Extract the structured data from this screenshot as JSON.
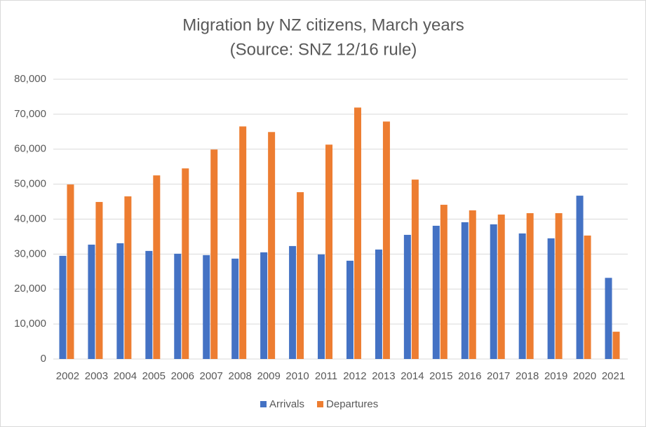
{
  "chart_data": {
    "type": "bar",
    "title": "Migration by NZ citizens, March years",
    "subtitle": "(Source: SNZ 12/16 rule)",
    "categories": [
      "2002",
      "2003",
      "2004",
      "2005",
      "2006",
      "2007",
      "2008",
      "2009",
      "2010",
      "2011",
      "2012",
      "2013",
      "2014",
      "2015",
      "2016",
      "2017",
      "2018",
      "2019",
      "2020",
      "2021"
    ],
    "series": [
      {
        "name": "Arrivals",
        "color": "#4472c4",
        "values": [
          29500,
          32700,
          33100,
          30900,
          30100,
          29700,
          28700,
          30500,
          32300,
          29900,
          28100,
          31300,
          35500,
          38100,
          39100,
          38500,
          35900,
          34500,
          46700,
          23200
        ]
      },
      {
        "name": "Departures",
        "color": "#ed7d31",
        "values": [
          49900,
          44900,
          46500,
          52500,
          54500,
          59900,
          66500,
          64900,
          47700,
          61300,
          71900,
          67900,
          51300,
          44100,
          42500,
          41300,
          41700,
          41700,
          35300,
          7800
        ]
      }
    ],
    "ylim": [
      0,
      80000
    ],
    "yticks": [
      0,
      {
        "value": 10000,
        "label": "10,000"
      },
      {
        "value": 20000,
        "label": "20,000"
      },
      {
        "value": 30000,
        "label": "30,000"
      },
      {
        "value": 40000,
        "label": "40,000"
      },
      {
        "value": 50000,
        "label": "50,000"
      },
      {
        "value": 60000,
        "label": "60,000"
      },
      {
        "value": 70000,
        "label": "70,000"
      },
      {
        "value": 80000,
        "label": "80,000"
      }
    ],
    "grid": true,
    "legend": "bottom"
  }
}
